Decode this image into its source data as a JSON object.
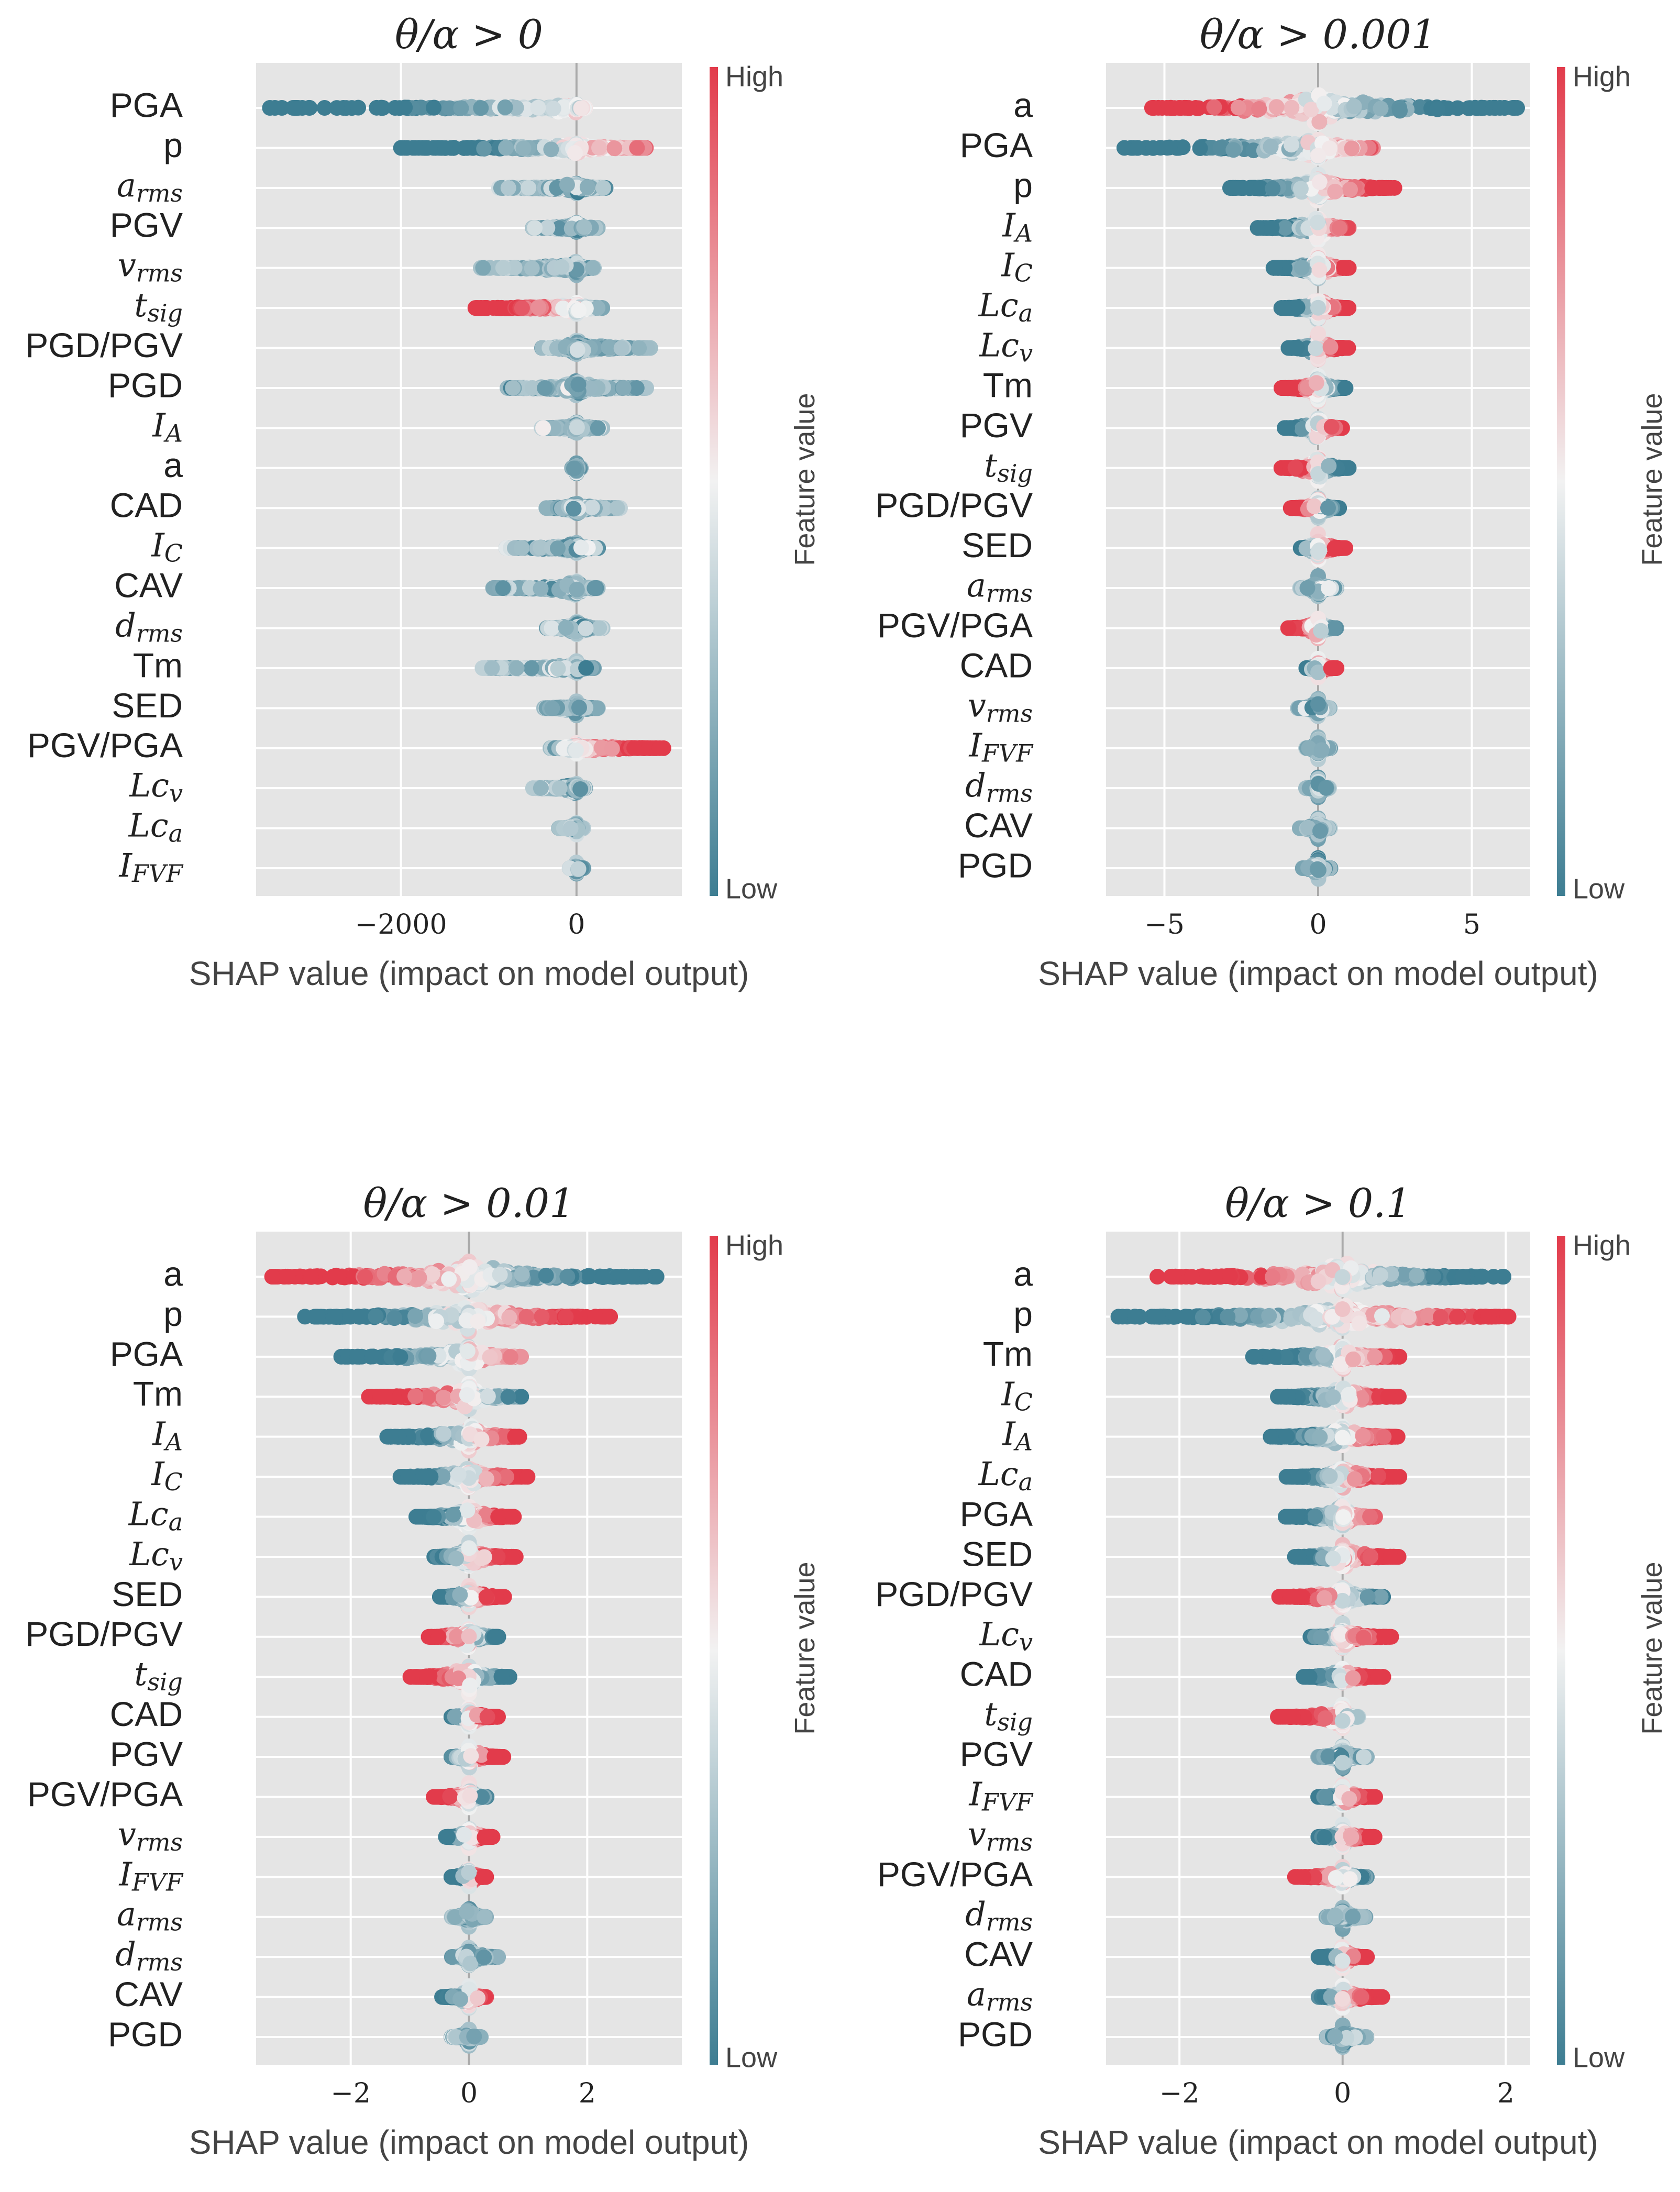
{
  "colors": {
    "low": "#3d7d92",
    "mid": "#f2f2f2",
    "high": "#e23b4b",
    "plot_bg": "#e5e5e5",
    "grid": "#ffffff",
    "zero_line": "#aaaaaa"
  },
  "colorbar": {
    "high_label": "High",
    "low_label": "Low",
    "title": "Feature value"
  },
  "chart_data": [
    {
      "type": "scatter",
      "subtype": "shap-beeswarm",
      "title": "θ/α > 0",
      "xlabel": "SHAP value (impact on model output)",
      "xlim": [
        -3650,
        1200
      ],
      "xticks": [
        -2000,
        0
      ],
      "xtick_labels": [
        "−2000",
        "0"
      ],
      "features": [
        {
          "label": "PGA",
          "min": -3500,
          "max": 100,
          "spread": 0.15,
          "high_effect": "positive"
        },
        {
          "label": "p",
          "min": -2000,
          "max": 800,
          "spread": 0.2,
          "high_effect": "positive"
        },
        {
          "label": "a_rms",
          "min": -900,
          "max": 350,
          "spread": 0.2,
          "high_effect": "mixed"
        },
        {
          "label": "PGV",
          "min": -500,
          "max": 250,
          "spread": 0.2,
          "high_effect": "mixed"
        },
        {
          "label": "v_rms",
          "min": -1100,
          "max": 200,
          "spread": 0.2,
          "high_effect": "mixed"
        },
        {
          "label": "t_sig",
          "min": -1200,
          "max": 300,
          "spread": 0.2,
          "high_effect": "negative"
        },
        {
          "label": "PGD/PGV",
          "min": -400,
          "max": 850,
          "spread": 0.25,
          "high_effect": "mixed"
        },
        {
          "label": "PGD",
          "min": -800,
          "max": 800,
          "spread": 0.25,
          "high_effect": "mixed"
        },
        {
          "label": "I_A",
          "min": -400,
          "max": 300,
          "spread": 0.2,
          "high_effect": "mixed"
        },
        {
          "label": "a",
          "min": -50,
          "max": 50,
          "spread": 0.2,
          "high_effect": "mixed"
        },
        {
          "label": "CAD",
          "min": -350,
          "max": 500,
          "spread": 0.2,
          "high_effect": "mixed"
        },
        {
          "label": "I_C",
          "min": -800,
          "max": 250,
          "spread": 0.2,
          "high_effect": "mixed"
        },
        {
          "label": "CAV",
          "min": -950,
          "max": 250,
          "spread": 0.25,
          "high_effect": "mixed"
        },
        {
          "label": "d_rms",
          "min": -350,
          "max": 300,
          "spread": 0.25,
          "high_effect": "mixed"
        },
        {
          "label": "Tm",
          "min": -1100,
          "max": 200,
          "spread": 0.2,
          "high_effect": "mixed"
        },
        {
          "label": "SED",
          "min": -400,
          "max": 250,
          "spread": 0.2,
          "high_effect": "mixed"
        },
        {
          "label": "PGV/PGA",
          "min": -300,
          "max": 1000,
          "spread": 0.2,
          "high_effect": "positive"
        },
        {
          "label": "Lc_v",
          "min": -500,
          "max": 100,
          "spread": 0.2,
          "high_effect": "mixed"
        },
        {
          "label": "Lc_a",
          "min": -200,
          "max": 80,
          "spread": 0.2,
          "high_effect": "mixed"
        },
        {
          "label": "I_FVF",
          "min": -80,
          "max": 80,
          "spread": 0.2,
          "high_effect": "mixed"
        }
      ]
    },
    {
      "type": "scatter",
      "subtype": "shap-beeswarm",
      "title": "θ/α > 0.001",
      "xlabel": "SHAP value (impact on model output)",
      "xlim": [
        -6.9,
        6.9
      ],
      "xticks": [
        -5,
        0,
        5
      ],
      "xtick_labels": [
        "−5",
        "0",
        "5"
      ],
      "features": [
        {
          "label": "a",
          "min": -5.5,
          "max": 6.5,
          "spread": 0.5,
          "high_effect": "negative"
        },
        {
          "label": "PGA",
          "min": -6.4,
          "max": 1.8,
          "spread": 0.4,
          "high_effect": "positive"
        },
        {
          "label": "p",
          "min": -2.9,
          "max": 2.5,
          "spread": 0.45,
          "high_effect": "positive"
        },
        {
          "label": "I_A",
          "min": -2.0,
          "max": 1.0,
          "spread": 0.4,
          "high_effect": "positive"
        },
        {
          "label": "I_C",
          "min": -1.5,
          "max": 1.0,
          "spread": 0.4,
          "high_effect": "positive"
        },
        {
          "label": "Lc_a",
          "min": -1.2,
          "max": 1.0,
          "spread": 0.4,
          "high_effect": "positive"
        },
        {
          "label": "Lc_v",
          "min": -1.0,
          "max": 1.0,
          "spread": 0.4,
          "high_effect": "positive"
        },
        {
          "label": "Tm",
          "min": -1.2,
          "max": 0.9,
          "spread": 0.4,
          "high_effect": "negative"
        },
        {
          "label": "PGV",
          "min": -1.1,
          "max": 0.8,
          "spread": 0.4,
          "high_effect": "positive"
        },
        {
          "label": "t_sig",
          "min": -1.2,
          "max": 1.0,
          "spread": 0.4,
          "high_effect": "negative"
        },
        {
          "label": "PGD/PGV",
          "min": -0.9,
          "max": 0.7,
          "spread": 0.4,
          "high_effect": "negative"
        },
        {
          "label": "SED",
          "min": -0.6,
          "max": 0.9,
          "spread": 0.4,
          "high_effect": "positive"
        },
        {
          "label": "a_rms",
          "min": -0.6,
          "max": 0.6,
          "spread": 0.35,
          "high_effect": "mixed"
        },
        {
          "label": "PGV/PGA",
          "min": -1.0,
          "max": 0.6,
          "spread": 0.35,
          "high_effect": "negative"
        },
        {
          "label": "CAD",
          "min": -0.4,
          "max": 0.6,
          "spread": 0.35,
          "high_effect": "positive"
        },
        {
          "label": "v_rms",
          "min": -0.7,
          "max": 0.4,
          "spread": 0.35,
          "high_effect": "mixed"
        },
        {
          "label": "I_FVF",
          "min": -0.4,
          "max": 0.4,
          "spread": 0.35,
          "high_effect": "mixed"
        },
        {
          "label": "d_rms",
          "min": -0.4,
          "max": 0.4,
          "spread": 0.35,
          "high_effect": "mixed"
        },
        {
          "label": "CAV",
          "min": -0.6,
          "max": 0.4,
          "spread": 0.35,
          "high_effect": "mixed"
        },
        {
          "label": "PGD",
          "min": -0.5,
          "max": 0.4,
          "spread": 0.35,
          "high_effect": "mixed"
        }
      ]
    },
    {
      "type": "scatter",
      "subtype": "shap-beeswarm",
      "title": "θ/α > 0.01",
      "xlabel": "SHAP value (impact on model output)",
      "xlim": [
        -3.6,
        3.6
      ],
      "xticks": [
        -2,
        0,
        2
      ],
      "xtick_labels": [
        "−2",
        "0",
        "2"
      ],
      "features": [
        {
          "label": "a",
          "min": -3.4,
          "max": 3.3,
          "spread": 0.5,
          "high_effect": "negative"
        },
        {
          "label": "p",
          "min": -2.8,
          "max": 2.4,
          "spread": 0.45,
          "high_effect": "positive"
        },
        {
          "label": "PGA",
          "min": -2.2,
          "max": 0.9,
          "spread": 0.4,
          "high_effect": "positive"
        },
        {
          "label": "Tm",
          "min": -1.7,
          "max": 0.9,
          "spread": 0.4,
          "high_effect": "negative"
        },
        {
          "label": "I_A",
          "min": -1.4,
          "max": 0.9,
          "spread": 0.4,
          "high_effect": "positive"
        },
        {
          "label": "I_C",
          "min": -1.2,
          "max": 1.0,
          "spread": 0.4,
          "high_effect": "positive"
        },
        {
          "label": "Lc_a",
          "min": -0.9,
          "max": 0.8,
          "spread": 0.4,
          "high_effect": "positive"
        },
        {
          "label": "Lc_v",
          "min": -0.6,
          "max": 0.8,
          "spread": 0.4,
          "high_effect": "positive"
        },
        {
          "label": "SED",
          "min": -0.5,
          "max": 0.6,
          "spread": 0.4,
          "high_effect": "positive"
        },
        {
          "label": "PGD/PGV",
          "min": -0.7,
          "max": 0.5,
          "spread": 0.4,
          "high_effect": "negative"
        },
        {
          "label": "t_sig",
          "min": -1.0,
          "max": 0.7,
          "spread": 0.4,
          "high_effect": "negative"
        },
        {
          "label": "CAD",
          "min": -0.3,
          "max": 0.5,
          "spread": 0.35,
          "high_effect": "positive"
        },
        {
          "label": "PGV",
          "min": -0.3,
          "max": 0.6,
          "spread": 0.35,
          "high_effect": "positive"
        },
        {
          "label": "PGV/PGA",
          "min": -0.6,
          "max": 0.3,
          "spread": 0.35,
          "high_effect": "negative"
        },
        {
          "label": "v_rms",
          "min": -0.4,
          "max": 0.4,
          "spread": 0.35,
          "high_effect": "positive"
        },
        {
          "label": "I_FVF",
          "min": -0.3,
          "max": 0.3,
          "spread": 0.35,
          "high_effect": "positive"
        },
        {
          "label": "a_rms",
          "min": -0.3,
          "max": 0.3,
          "spread": 0.35,
          "high_effect": "mixed"
        },
        {
          "label": "d_rms",
          "min": -0.3,
          "max": 0.5,
          "spread": 0.35,
          "high_effect": "mixed"
        },
        {
          "label": "CAV",
          "min": -0.5,
          "max": 0.3,
          "spread": 0.35,
          "high_effect": "positive"
        },
        {
          "label": "PGD",
          "min": -0.3,
          "max": 0.2,
          "spread": 0.35,
          "high_effect": "mixed"
        }
      ]
    },
    {
      "type": "scatter",
      "subtype": "shap-beeswarm",
      "title": "θ/α > 0.1",
      "xlabel": "SHAP value (impact on model output)",
      "xlim": [
        -2.9,
        2.3
      ],
      "xticks": [
        -2,
        0,
        2
      ],
      "xtick_labels": [
        "−2",
        "0",
        "2"
      ],
      "features": [
        {
          "label": "a",
          "min": -2.3,
          "max": 2.0,
          "spread": 0.5,
          "high_effect": "negative"
        },
        {
          "label": "p",
          "min": -2.8,
          "max": 2.2,
          "spread": 0.45,
          "high_effect": "positive"
        },
        {
          "label": "Tm",
          "min": -1.1,
          "max": 0.7,
          "spread": 0.4,
          "high_effect": "positive"
        },
        {
          "label": "I_C",
          "min": -0.8,
          "max": 0.7,
          "spread": 0.4,
          "high_effect": "positive"
        },
        {
          "label": "I_A",
          "min": -0.9,
          "max": 0.7,
          "spread": 0.4,
          "high_effect": "positive"
        },
        {
          "label": "Lc_a",
          "min": -0.7,
          "max": 0.7,
          "spread": 0.4,
          "high_effect": "positive"
        },
        {
          "label": "PGA",
          "min": -0.7,
          "max": 0.4,
          "spread": 0.4,
          "high_effect": "positive"
        },
        {
          "label": "SED",
          "min": -0.6,
          "max": 0.7,
          "spread": 0.4,
          "high_effect": "positive"
        },
        {
          "label": "PGD/PGV",
          "min": -0.8,
          "max": 0.5,
          "spread": 0.4,
          "high_effect": "negative"
        },
        {
          "label": "Lc_v",
          "min": -0.4,
          "max": 0.6,
          "spread": 0.4,
          "high_effect": "positive"
        },
        {
          "label": "CAD",
          "min": -0.5,
          "max": 0.5,
          "spread": 0.35,
          "high_effect": "positive"
        },
        {
          "label": "t_sig",
          "min": -0.8,
          "max": 0.2,
          "spread": 0.35,
          "high_effect": "negative"
        },
        {
          "label": "PGV",
          "min": -0.3,
          "max": 0.3,
          "spread": 0.35,
          "high_effect": "mixed"
        },
        {
          "label": "I_FVF",
          "min": -0.3,
          "max": 0.4,
          "spread": 0.35,
          "high_effect": "positive"
        },
        {
          "label": "v_rms",
          "min": -0.3,
          "max": 0.4,
          "spread": 0.35,
          "high_effect": "positive"
        },
        {
          "label": "PGV/PGA",
          "min": -0.6,
          "max": 0.3,
          "spread": 0.35,
          "high_effect": "negative"
        },
        {
          "label": "d_rms",
          "min": -0.2,
          "max": 0.3,
          "spread": 0.35,
          "high_effect": "mixed"
        },
        {
          "label": "CAV",
          "min": -0.3,
          "max": 0.3,
          "spread": 0.35,
          "high_effect": "positive"
        },
        {
          "label": "a_rms",
          "min": -0.3,
          "max": 0.5,
          "spread": 0.35,
          "high_effect": "positive"
        },
        {
          "label": "PGD",
          "min": -0.2,
          "max": 0.3,
          "spread": 0.35,
          "high_effect": "mixed"
        }
      ]
    }
  ]
}
